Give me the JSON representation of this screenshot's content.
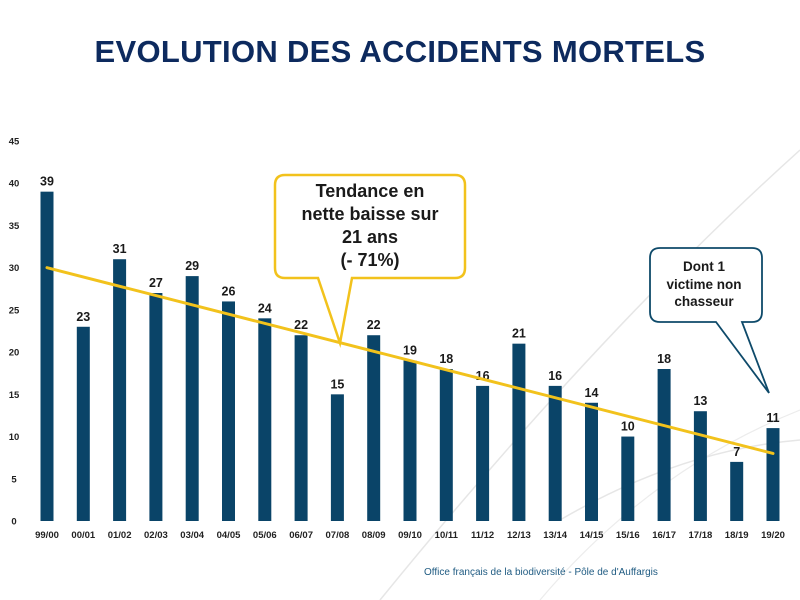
{
  "title": "EVOLUTION DES ACCIDENTS MORTELS",
  "footer": "Office français de la biodiversité  -  Pôle de d'Auffargis",
  "colors": {
    "bar": "#0a4468",
    "trend": "#f2c21c",
    "title": "#0d2a5e",
    "callout2_border": "#0e4a6a",
    "callout1_border": "#f2c21c",
    "footer": "#1f5b82"
  },
  "callouts": [
    {
      "lines": [
        "Tendance en",
        "nette baisse sur",
        "21 ans",
        "(- 71%)"
      ],
      "points_to": "trend-line"
    },
    {
      "lines": [
        "Dont 1",
        "victime non",
        "chasseur"
      ],
      "points_to": "19/20"
    }
  ],
  "chart_data": {
    "type": "bar",
    "title": "EVOLUTION DES ACCIDENTS MORTELS",
    "xlabel": "",
    "ylabel": "",
    "ylim": [
      0,
      45
    ],
    "yticks": [
      0,
      5,
      10,
      15,
      20,
      25,
      30,
      35,
      40,
      45
    ],
    "grid": false,
    "categories": [
      "99/00",
      "00/01",
      "01/02",
      "02/03",
      "03/04",
      "04/05",
      "05/06",
      "06/07",
      "07/08",
      "08/09",
      "09/10",
      "10/11",
      "11/12",
      "12/13",
      "13/14",
      "14/15",
      "15/16",
      "16/17",
      "17/18",
      "18/19",
      "19/20"
    ],
    "values": [
      39,
      23,
      31,
      27,
      29,
      26,
      24,
      22,
      15,
      22,
      19,
      18,
      16,
      21,
      16,
      14,
      10,
      18,
      13,
      7,
      11
    ],
    "data_labels": true,
    "trendline": {
      "type": "linear",
      "start": 30,
      "end": 8
    }
  }
}
